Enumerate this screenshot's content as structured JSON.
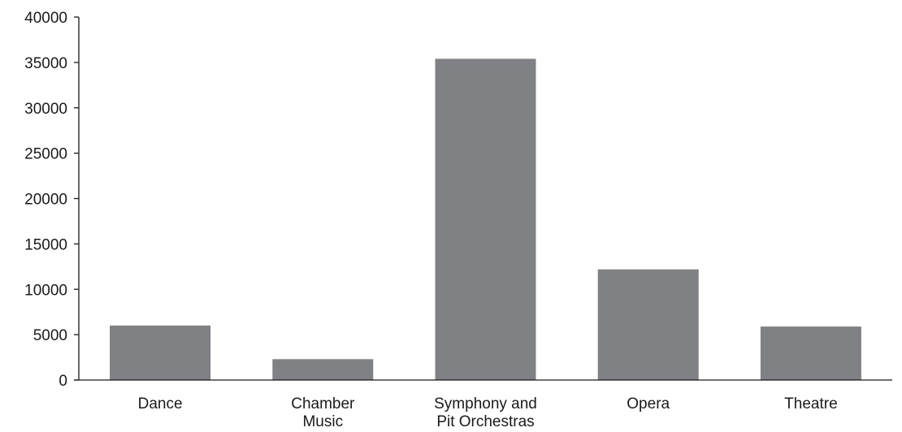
{
  "chart_data": {
    "type": "bar",
    "title": "",
    "xlabel": "",
    "ylabel": "",
    "categories": [
      [
        "Dance"
      ],
      [
        "Chamber",
        "Music"
      ],
      [
        "Symphony and",
        "Pit Orchestras"
      ],
      [
        "Opera"
      ],
      [
        "Theatre"
      ]
    ],
    "values": [
      6000,
      2300,
      35400,
      12200,
      5900
    ],
    "ylim": [
      0,
      40000
    ],
    "yticks": [
      0,
      5000,
      10000,
      15000,
      20000,
      25000,
      30000,
      35000,
      40000
    ],
    "grid": false,
    "legend": "none",
    "colors": {
      "bar": "#808184",
      "axis": "#1a1a1a",
      "text": "#1a1a1a",
      "background": "#ffffff"
    }
  }
}
